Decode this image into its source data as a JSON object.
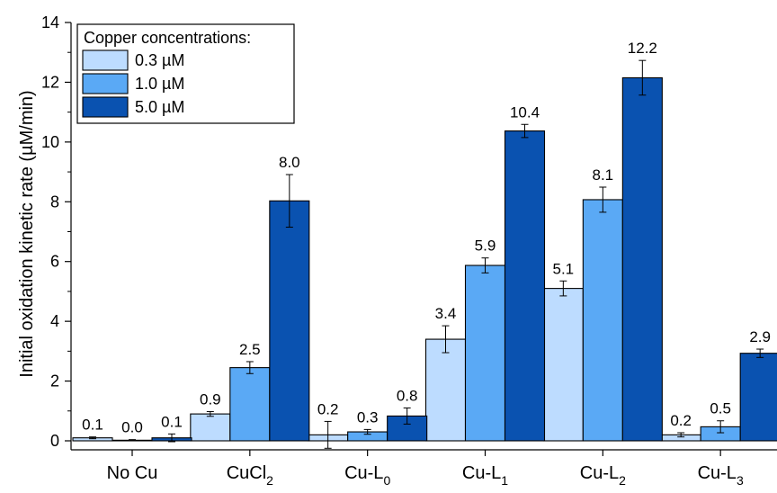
{
  "chart_data": {
    "type": "bar",
    "ylabel": "Initial oxidation kinetic rate (µM/min)",
    "xlabel": "",
    "ylim": [
      0,
      14
    ],
    "yticks": [
      0,
      2,
      4,
      6,
      8,
      10,
      12,
      14
    ],
    "grid": false,
    "legend": {
      "title": "Copper concentrations:",
      "position": "top-left"
    },
    "categories": [
      {
        "base": "No Cu",
        "sub": ""
      },
      {
        "base": "CuCl",
        "sub": "2"
      },
      {
        "base": "Cu-L",
        "sub": "0"
      },
      {
        "base": "Cu-L",
        "sub": "1"
      },
      {
        "base": "Cu-L",
        "sub": "2"
      },
      {
        "base": "Cu-L",
        "sub": "3"
      }
    ],
    "series": [
      {
        "name": "0.3 µM",
        "color": "#bddcff",
        "values": [
          0.1,
          0.9,
          0.2,
          3.4,
          5.1,
          0.2
        ],
        "errors": [
          0.03,
          0.08,
          0.45,
          0.45,
          0.25,
          0.07
        ],
        "labels": [
          "0.1",
          "0.9",
          "0.2",
          "3.4",
          "5.1",
          "0.2"
        ]
      },
      {
        "name": "1.0 µM",
        "color": "#5aa9f5",
        "values": [
          0.02,
          2.45,
          0.3,
          5.87,
          8.07,
          0.47
        ],
        "errors": [
          0.02,
          0.2,
          0.08,
          0.25,
          0.42,
          0.2
        ],
        "labels": [
          "0.0",
          "2.5",
          "0.3",
          "5.9",
          "8.1",
          "0.5"
        ]
      },
      {
        "name": "5.0 µM",
        "color": "#0a52b0",
        "values": [
          0.1,
          8.03,
          0.83,
          10.37,
          12.15,
          2.93
        ],
        "errors": [
          0.13,
          0.88,
          0.27,
          0.22,
          0.58,
          0.14
        ],
        "labels": [
          "0.1",
          "8.0",
          "0.8",
          "10.4",
          "12.2",
          "2.9"
        ]
      }
    ]
  }
}
